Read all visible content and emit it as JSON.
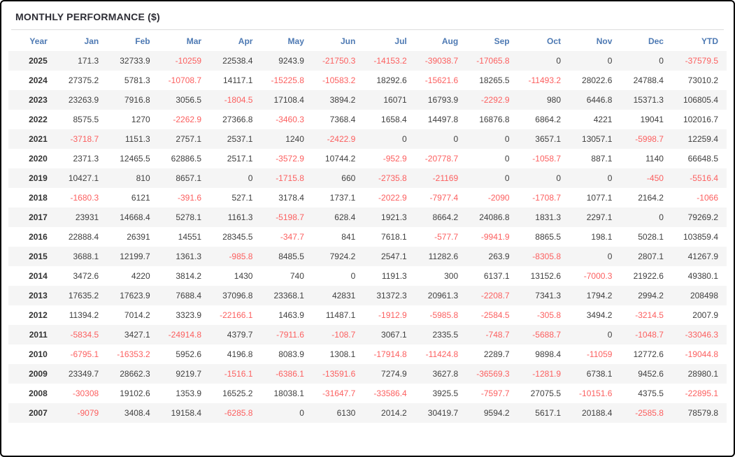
{
  "panel": {
    "title": "MONTHLY PERFORMANCE ($)"
  },
  "colors": {
    "border": "#000000",
    "title_text": "#2d2d35",
    "header_text": "#4d79b3",
    "positive_text": "#3f3f3f",
    "negative_text": "#fc5f5f",
    "row_stripe": "#f5f5f5",
    "divider": "#dddddd"
  },
  "chart_data": {
    "type": "table",
    "title": "MONTHLY PERFORMANCE ($)",
    "columns": [
      "Year",
      "Jan",
      "Feb",
      "Mar",
      "Apr",
      "May",
      "Jun",
      "Jul",
      "Aug",
      "Sep",
      "Oct",
      "Nov",
      "Dec",
      "YTD"
    ],
    "rows": [
      {
        "year": "2025",
        "values": [
          "171.3",
          "32733.9",
          "-10259",
          "22538.4",
          "9243.9",
          "-21750.3",
          "-14153.2",
          "-39038.7",
          "-17065.8",
          "0",
          "0",
          "0",
          "-37579.5"
        ]
      },
      {
        "year": "2024",
        "values": [
          "27375.2",
          "5781.3",
          "-10708.7",
          "14117.1",
          "-15225.8",
          "-10583.2",
          "18292.6",
          "-15621.6",
          "18265.5",
          "-11493.2",
          "28022.6",
          "24788.4",
          "73010.2"
        ]
      },
      {
        "year": "2023",
        "values": [
          "23263.9",
          "7916.8",
          "3056.5",
          "-1804.5",
          "17108.4",
          "3894.2",
          "16071",
          "16793.9",
          "-2292.9",
          "980",
          "6446.8",
          "15371.3",
          "106805.4"
        ]
      },
      {
        "year": "2022",
        "values": [
          "8575.5",
          "1270",
          "-2262.9",
          "27366.8",
          "-3460.3",
          "7368.4",
          "1658.4",
          "14497.8",
          "16876.8",
          "6864.2",
          "4221",
          "19041",
          "102016.7"
        ]
      },
      {
        "year": "2021",
        "values": [
          "-3718.7",
          "1151.3",
          "2757.1",
          "2537.1",
          "1240",
          "-2422.9",
          "0",
          "0",
          "0",
          "3657.1",
          "13057.1",
          "-5998.7",
          "12259.4"
        ]
      },
      {
        "year": "2020",
        "values": [
          "2371.3",
          "12465.5",
          "62886.5",
          "2517.1",
          "-3572.9",
          "10744.2",
          "-952.9",
          "-20778.7",
          "0",
          "-1058.7",
          "887.1",
          "1140",
          "66648.5"
        ]
      },
      {
        "year": "2019",
        "values": [
          "10427.1",
          "810",
          "8657.1",
          "0",
          "-1715.8",
          "660",
          "-2735.8",
          "-21169",
          "0",
          "0",
          "0",
          "-450",
          "-5516.4"
        ]
      },
      {
        "year": "2018",
        "values": [
          "-1680.3",
          "6121",
          "-391.6",
          "527.1",
          "3178.4",
          "1737.1",
          "-2022.9",
          "-7977.4",
          "-2090",
          "-1708.7",
          "1077.1",
          "2164.2",
          "-1066"
        ]
      },
      {
        "year": "2017",
        "values": [
          "23931",
          "14668.4",
          "5278.1",
          "1161.3",
          "-5198.7",
          "628.4",
          "1921.3",
          "8664.2",
          "24086.8",
          "1831.3",
          "2297.1",
          "0",
          "79269.2"
        ]
      },
      {
        "year": "2016",
        "values": [
          "22888.4",
          "26391",
          "14551",
          "28345.5",
          "-347.7",
          "841",
          "7618.1",
          "-577.7",
          "-9941.9",
          "8865.5",
          "198.1",
          "5028.1",
          "103859.4"
        ]
      },
      {
        "year": "2015",
        "values": [
          "3688.1",
          "12199.7",
          "1361.3",
          "-985.8",
          "8485.5",
          "7924.2",
          "2547.1",
          "11282.6",
          "263.9",
          "-8305.8",
          "0",
          "2807.1",
          "41267.9"
        ]
      },
      {
        "year": "2014",
        "values": [
          "3472.6",
          "4220",
          "3814.2",
          "1430",
          "740",
          "0",
          "1191.3",
          "300",
          "6137.1",
          "13152.6",
          "-7000.3",
          "21922.6",
          "49380.1"
        ]
      },
      {
        "year": "2013",
        "values": [
          "17635.2",
          "17623.9",
          "7688.4",
          "37096.8",
          "23368.1",
          "42831",
          "31372.3",
          "20961.3",
          "-2208.7",
          "7341.3",
          "1794.2",
          "2994.2",
          "208498"
        ]
      },
      {
        "year": "2012",
        "values": [
          "11394.2",
          "7014.2",
          "3323.9",
          "-22166.1",
          "1463.9",
          "11487.1",
          "-1912.9",
          "-5985.8",
          "-2584.5",
          "-305.8",
          "3494.2",
          "-3214.5",
          "2007.9"
        ]
      },
      {
        "year": "2011",
        "values": [
          "-5834.5",
          "3427.1",
          "-24914.8",
          "4379.7",
          "-7911.6",
          "-108.7",
          "3067.1",
          "2335.5",
          "-748.7",
          "-5688.7",
          "0",
          "-1048.7",
          "-33046.3"
        ]
      },
      {
        "year": "2010",
        "values": [
          "-6795.1",
          "-16353.2",
          "5952.6",
          "4196.8",
          "8083.9",
          "1308.1",
          "-17914.8",
          "-11424.8",
          "2289.7",
          "9898.4",
          "-11059",
          "12772.6",
          "-19044.8"
        ]
      },
      {
        "year": "2009",
        "values": [
          "23349.7",
          "28662.3",
          "9219.7",
          "-1516.1",
          "-6386.1",
          "-13591.6",
          "7274.9",
          "3627.8",
          "-36569.3",
          "-1281.9",
          "6738.1",
          "9452.6",
          "28980.1"
        ]
      },
      {
        "year": "2008",
        "values": [
          "-30308",
          "19102.6",
          "1353.9",
          "16525.2",
          "18038.1",
          "-31647.7",
          "-33586.4",
          "3925.5",
          "-7597.7",
          "27075.5",
          "-10151.6",
          "4375.5",
          "-22895.1"
        ]
      },
      {
        "year": "2007",
        "values": [
          "-9079",
          "3408.4",
          "19158.4",
          "-6285.8",
          "0",
          "6130",
          "2014.2",
          "30419.7",
          "9594.2",
          "5617.1",
          "20188.4",
          "-2585.8",
          "78579.8"
        ]
      }
    ]
  }
}
